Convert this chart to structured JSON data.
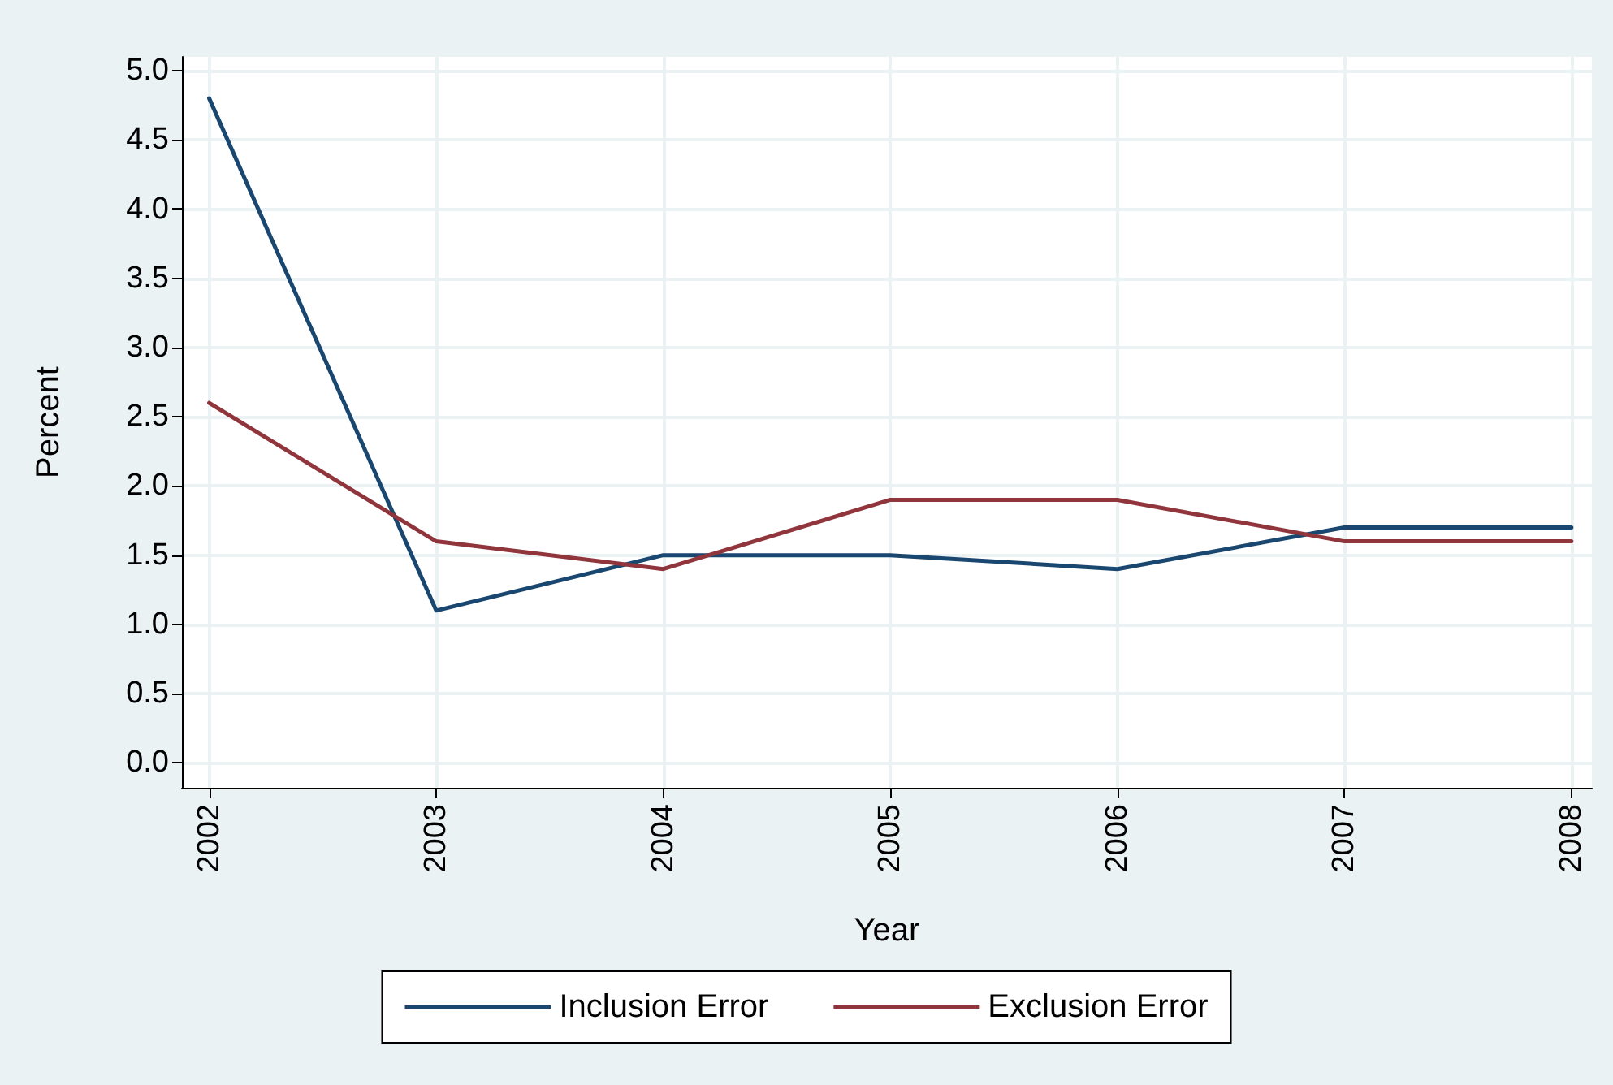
{
  "chart_data": {
    "type": "line",
    "xlabel": "Year",
    "ylabel": "Percent",
    "x": [
      2002,
      2003,
      2004,
      2005,
      2006,
      2007,
      2008
    ],
    "series": [
      {
        "name": "Inclusion Error",
        "color": "#1a476f",
        "values": [
          4.8,
          1.1,
          1.5,
          1.5,
          1.4,
          1.7,
          1.7
        ]
      },
      {
        "name": "Exclusion Error",
        "color": "#90353b",
        "values": [
          2.6,
          1.6,
          1.4,
          1.9,
          1.9,
          1.6,
          1.6
        ]
      }
    ],
    "xlim": [
      2001.88,
      2008.09
    ],
    "xticks": [
      2002,
      2003,
      2004,
      2005,
      2006,
      2007,
      2008
    ],
    "ylim": [
      -0.18,
      5.1
    ],
    "yticks": [
      {
        "value": 0,
        "label": "0.0"
      },
      0.5,
      {
        "value": 1,
        "label": "1.0"
      },
      1.5,
      {
        "value": 2,
        "label": "2.0"
      },
      2.5,
      {
        "value": 3,
        "label": "3.0"
      },
      3.5,
      {
        "value": 4,
        "label": "4.0"
      },
      4.5,
      {
        "value": 5,
        "label": "5.0"
      }
    ],
    "grid": true,
    "legend": "bottom",
    "marker": "none",
    "line_style": "solid"
  }
}
